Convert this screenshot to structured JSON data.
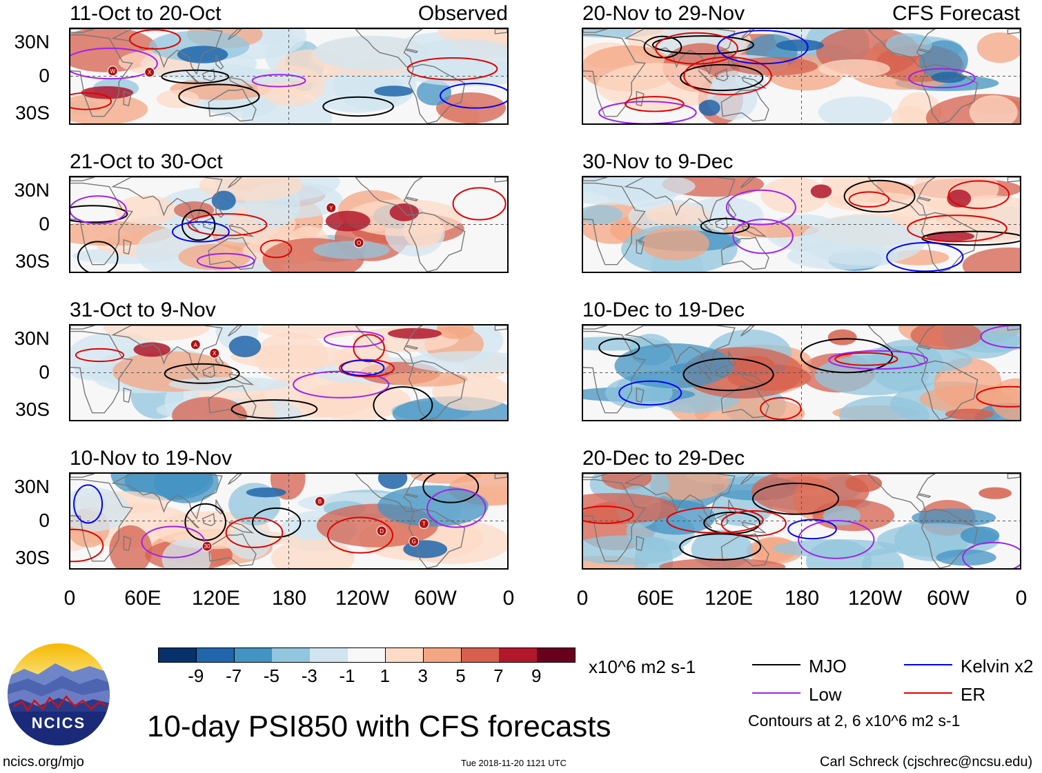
{
  "lat_labels": [
    "30N",
    "0",
    "30S"
  ],
  "lon_labels": [
    "0",
    "60E",
    "120E",
    "180",
    "120W",
    "60W",
    "0"
  ],
  "observed_tag": "Observed",
  "forecast_tag": "CFS Forecast",
  "left_panels": [
    {
      "title": "11-Oct to 20-Oct"
    },
    {
      "title": "21-Oct to 30-Oct"
    },
    {
      "title": "31-Oct to 9-Nov"
    },
    {
      "title": "10-Nov to 19-Nov"
    }
  ],
  "right_panels": [
    {
      "title": "20-Nov to 29-Nov"
    },
    {
      "title": "30-Nov to 9-Dec"
    },
    {
      "title": "10-Dec to 19-Dec"
    },
    {
      "title": "20-Dec to 29-Dec"
    }
  ],
  "colorbar": {
    "colors": [
      "#08306b",
      "#2166ac",
      "#4393c3",
      "#92c5de",
      "#d1e5f0",
      "#f7f7f7",
      "#fddbc7",
      "#f4a582",
      "#d6604d",
      "#b2182b",
      "#67001f"
    ],
    "ticks": [
      "-9",
      "-7",
      "-5",
      "-3",
      "-1",
      "1",
      "3",
      "5",
      "7",
      "9"
    ],
    "units": "x10^6 m2 s-1"
  },
  "legend": {
    "mjo": "MJO",
    "low": "Low",
    "kelvin": "Kelvin x2",
    "er": "ER",
    "mjo_color": "#000000",
    "low_color": "#a020f0",
    "kelvin_color": "#0000ff",
    "er_color": "#e00000",
    "contours_note": "Contours at 2, 6 x10^6 m2 s-1"
  },
  "logo_text": "NCICS",
  "main_title": "10-day PSI850 with CFS forecasts",
  "footer": {
    "url": "ncics.org/mjo",
    "timestamp": "Tue 2018-11-20 1121 UTC",
    "credit": "Carl Schreck (cjschrec@ncsu.edu)"
  },
  "storm_labels": {
    "p0": [
      "W",
      "X"
    ],
    "p1": [
      "Y",
      "O"
    ],
    "p2": [
      "A",
      "X"
    ],
    "p3": [
      "G",
      "T",
      "B",
      "D",
      "30"
    ]
  }
}
